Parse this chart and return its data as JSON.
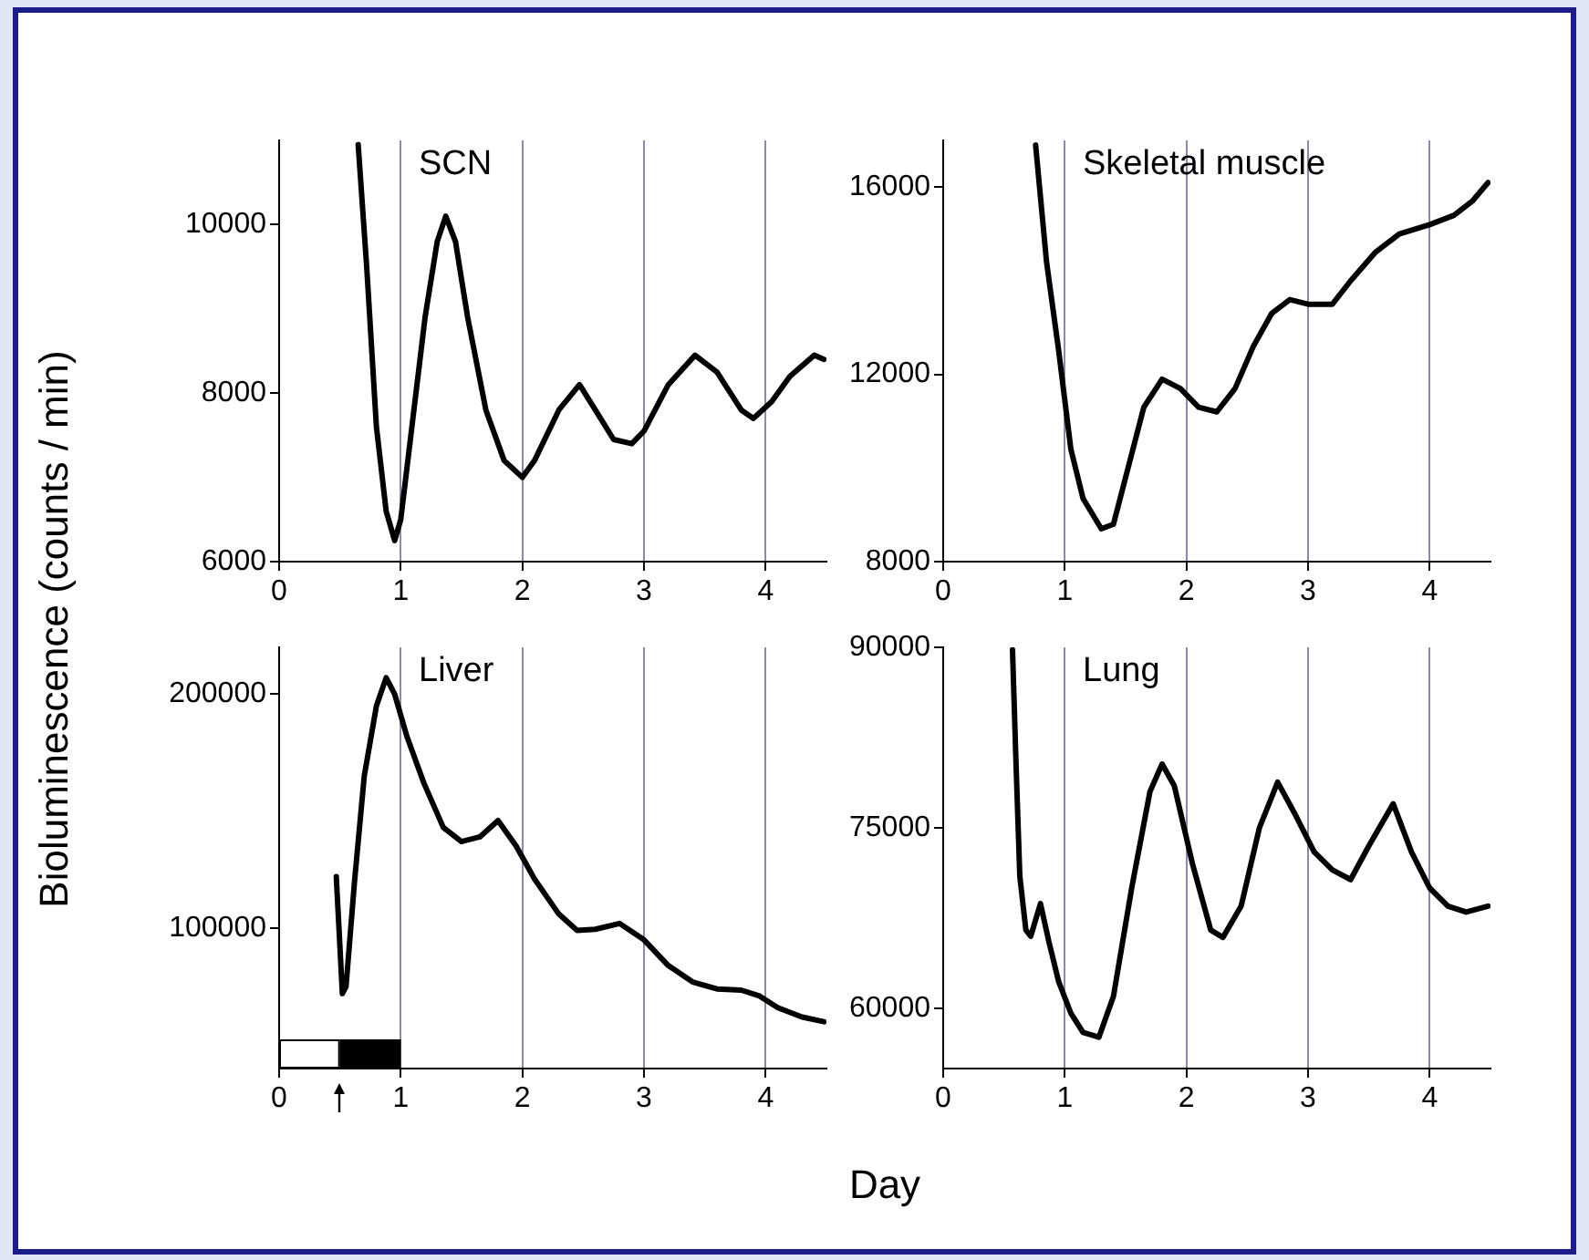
{
  "chart_data": [
    {
      "type": "line",
      "title": "SCN",
      "ylabel": "Bioluminescence (counts / min)",
      "color": "#000000",
      "marker": "none",
      "grid": "x",
      "xlim": [
        0,
        4.5
      ],
      "xticks": [
        0,
        1,
        2,
        3,
        4
      ],
      "ylim": [
        6000,
        11000
      ],
      "yticks": [
        6000,
        8000,
        10000
      ],
      "x": [
        0.65,
        0.72,
        0.8,
        0.88,
        0.95,
        1.0,
        1.1,
        1.2,
        1.3,
        1.37,
        1.45,
        1.55,
        1.7,
        1.85,
        2.0,
        2.1,
        2.3,
        2.47,
        2.6,
        2.75,
        2.9,
        3.0,
        3.2,
        3.42,
        3.6,
        3.8,
        3.9,
        4.05,
        4.2,
        4.4,
        4.48
      ],
      "values": [
        10950,
        9500,
        7600,
        6600,
        6250,
        6500,
        7700,
        8900,
        9800,
        10100,
        9800,
        8900,
        7800,
        7200,
        7000,
        7200,
        7800,
        8100,
        7800,
        7450,
        7400,
        7550,
        8100,
        8450,
        8250,
        7800,
        7700,
        7900,
        8200,
        8450,
        8400
      ]
    },
    {
      "type": "line",
      "title": "Skeletal muscle",
      "color": "#000000",
      "marker": "none",
      "grid": "x",
      "xlim": [
        0,
        4.5
      ],
      "xticks": [
        0,
        1,
        2,
        3,
        4
      ],
      "ylim": [
        8000,
        17000
      ],
      "yticks": [
        8000,
        12000,
        16000
      ],
      "x": [
        0.76,
        0.85,
        0.95,
        1.05,
        1.15,
        1.3,
        1.4,
        1.5,
        1.65,
        1.8,
        1.95,
        2.1,
        2.25,
        2.4,
        2.55,
        2.7,
        2.85,
        3.0,
        3.2,
        3.35,
        3.55,
        3.75,
        4.0,
        4.2,
        4.35,
        4.48
      ],
      "values": [
        16900,
        14400,
        12500,
        10400,
        9350,
        8700,
        8800,
        9800,
        11300,
        11900,
        11700,
        11300,
        11200,
        11700,
        12600,
        13300,
        13600,
        13500,
        13500,
        14000,
        14600,
        15000,
        15200,
        15400,
        15700,
        16100
      ]
    },
    {
      "type": "line",
      "title": "Liver",
      "xlabel": "Day",
      "color": "#000000",
      "marker": "none",
      "grid": "x",
      "xlim": [
        0,
        4.5
      ],
      "xticks": [
        0,
        1,
        2,
        3,
        4
      ],
      "ylim": [
        40000,
        220000
      ],
      "yticks": [
        100000,
        200000
      ],
      "bands": [
        {
          "axis": "x",
          "from": 0,
          "to": 0.5,
          "color": "#ffffff"
        },
        {
          "axis": "x",
          "from": 0.5,
          "to": 1,
          "color": "#000000"
        }
      ],
      "x": [
        0.47,
        0.5,
        0.52,
        0.55,
        0.62,
        0.7,
        0.8,
        0.88,
        0.95,
        1.05,
        1.19,
        1.35,
        1.5,
        1.65,
        1.8,
        1.95,
        2.1,
        2.3,
        2.45,
        2.6,
        2.8,
        3.0,
        3.2,
        3.4,
        3.6,
        3.8,
        3.95,
        4.1,
        4.3,
        4.48
      ],
      "values": [
        122000,
        92000,
        72000,
        75000,
        120000,
        165000,
        195000,
        207000,
        200000,
        182000,
        162000,
        143000,
        137000,
        139000,
        146000,
        135000,
        121000,
        106000,
        99000,
        99500,
        102000,
        95000,
        84000,
        77000,
        74000,
        73500,
        71000,
        66000,
        62000,
        60000
      ]
    },
    {
      "type": "line",
      "title": "Lung",
      "color": "#000000",
      "marker": "none",
      "grid": "x",
      "xlim": [
        0,
        4.5
      ],
      "xticks": [
        0,
        1,
        2,
        3,
        4
      ],
      "ylim": [
        55000,
        90000
      ],
      "yticks": [
        60000,
        75000,
        90000
      ],
      "x": [
        0.57,
        0.6,
        0.63,
        0.68,
        0.72,
        0.8,
        0.87,
        0.95,
        1.05,
        1.15,
        1.28,
        1.4,
        1.55,
        1.7,
        1.8,
        1.9,
        2.05,
        2.2,
        2.3,
        2.45,
        2.6,
        2.75,
        2.9,
        3.05,
        3.2,
        3.35,
        3.5,
        3.7,
        3.85,
        4.0,
        4.15,
        4.3,
        4.48
      ],
      "values": [
        89800,
        80000,
        71000,
        66500,
        66000,
        68700,
        65500,
        62200,
        59600,
        58000,
        57600,
        61000,
        70000,
        78000,
        80300,
        78500,
        72000,
        66500,
        65900,
        68500,
        75000,
        78800,
        76000,
        73000,
        71500,
        70700,
        73500,
        77000,
        73000,
        70000,
        68500,
        68000,
        68500
      ]
    }
  ]
}
